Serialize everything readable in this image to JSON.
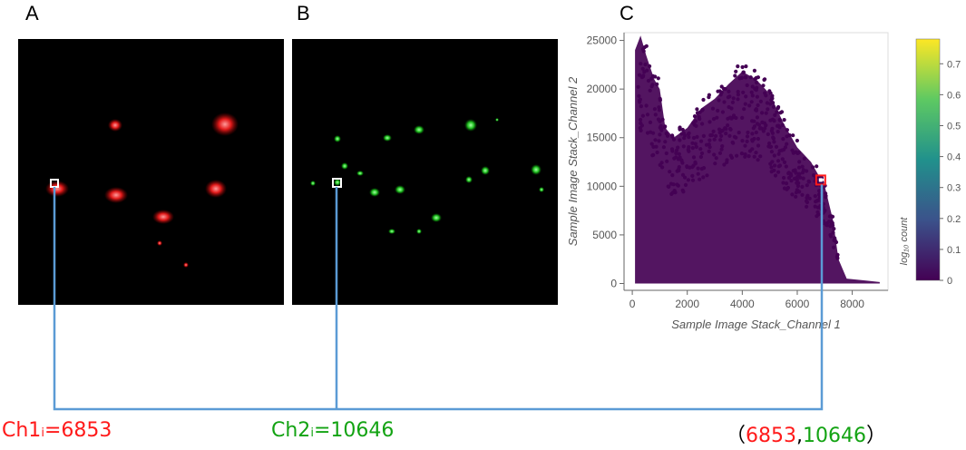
{
  "panels": [
    {
      "letter": "A",
      "channel": "red",
      "color": "#e01010"
    },
    {
      "letter": "B",
      "channel": "green",
      "color": "#19c019"
    },
    {
      "letter": "C"
    }
  ],
  "labels": {
    "ch1_prefix": "Ch1",
    "ch1_sub": "i",
    "ch1_eq": "=6853",
    "ch2_prefix": "Ch2",
    "ch2_sub": "i",
    "ch2_eq": "=10646",
    "pair_open": "（",
    "pair_x": "6853",
    "pair_comma": ",",
    "pair_y": "10646",
    "pair_close": "）"
  },
  "colors": {
    "ch1": "#ff1a1a",
    "ch2": "#13a313",
    "connector": "#5b9bd5",
    "scatter": "#440154",
    "highlight": "#ff1a1a"
  },
  "chart_data": {
    "type": "heatmap",
    "title": "",
    "xlabel": "Sample Image Stack_Channel 1",
    "ylabel": "Sample Image Stack_Channel 2",
    "xlim": [
      -300,
      9300
    ],
    "ylim": [
      -700,
      25800
    ],
    "xticks": [
      0,
      2000,
      4000,
      6000,
      8000
    ],
    "yticks": [
      0,
      5000,
      10000,
      15000,
      20000,
      25000
    ],
    "highlight_point": {
      "x": 6853,
      "y": 10646
    },
    "colorbar": {
      "label": "log₁₀ count",
      "min": 0,
      "max": 0.78,
      "ticks": [
        0,
        0.1,
        0.2,
        0.3,
        0.4,
        0.5,
        0.6,
        0.7
      ],
      "colormap": [
        "#440154",
        "#3b528b",
        "#21918c",
        "#5ec962",
        "#fde725"
      ]
    },
    "density_envelope": [
      [
        100,
        200
      ],
      [
        100,
        24000
      ],
      [
        300,
        25500
      ],
      [
        500,
        23500
      ],
      [
        800,
        21000
      ],
      [
        1000,
        20000
      ],
      [
        1200,
        16000
      ],
      [
        1500,
        15000
      ],
      [
        2000,
        16000
      ],
      [
        2500,
        18000
      ],
      [
        3000,
        19000
      ],
      [
        3500,
        20500
      ],
      [
        4000,
        21800
      ],
      [
        4500,
        21000
      ],
      [
        5000,
        19500
      ],
      [
        5500,
        16500
      ],
      [
        6000,
        14000
      ],
      [
        6500,
        12500
      ],
      [
        7000,
        10000
      ],
      [
        7300,
        6500
      ],
      [
        7500,
        2500
      ],
      [
        7800,
        500
      ],
      [
        8500,
        300
      ],
      [
        9000,
        150
      ],
      [
        9000,
        0
      ],
      [
        100,
        0
      ]
    ]
  }
}
